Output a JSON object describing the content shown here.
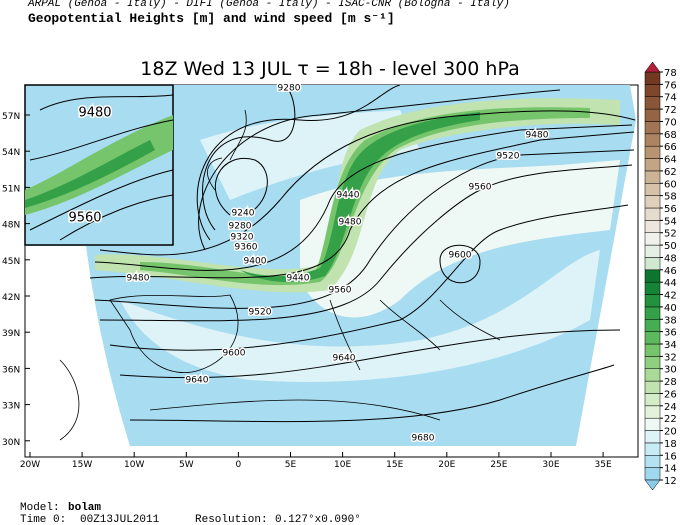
{
  "header": {
    "institutions": "ARPAL (Genoa - Italy)  -  DIFI (Genoa - Italy)  -  ISAC-CNR (Bologna - Italy)",
    "title": "Geopotential Heights [m] and wind speed [m s⁻¹]",
    "subtitle": "18Z Wed 13 JUL  τ = 18h  -  level 300 hPa"
  },
  "map": {
    "lat_labels": [
      "57N",
      "54N",
      "51N",
      "48N",
      "45N",
      "42N",
      "39N",
      "36N",
      "33N",
      "30N"
    ],
    "lon_labels": [
      "20W",
      "15W",
      "10W",
      "5W",
      "0",
      "5E",
      "10E",
      "15E",
      "20E",
      "25E",
      "30E",
      "35E"
    ],
    "contour_labels": [
      "9280",
      "9480",
      "9520",
      "9560",
      "9440",
      "9480",
      "9240",
      "9280",
      "9320",
      "9360",
      "9400",
      "9440",
      "9480",
      "9560",
      "9520",
      "9600",
      "9600",
      "9640",
      "9640",
      "9680"
    ],
    "inset_labels": [
      "9480",
      "9560"
    ]
  },
  "colorbar": {
    "levels": [
      12,
      14,
      16,
      18,
      20,
      22,
      24,
      26,
      28,
      30,
      32,
      34,
      36,
      38,
      40,
      42,
      44,
      46,
      48,
      50,
      52,
      54,
      56,
      58,
      60,
      62,
      64,
      66,
      68,
      70,
      72,
      74,
      76,
      78
    ],
    "colors": [
      "#a0d8ef",
      "#b4e2f3",
      "#c8ecf6",
      "#ddf3f8",
      "#eef8f4",
      "#e4f2dc",
      "#d4ebc8",
      "#c0e3b0",
      "#a9da98",
      "#8fcf80",
      "#76c46c",
      "#5db95e",
      "#46ad52",
      "#34a048",
      "#23923e",
      "#158436",
      "#0d752e",
      "#cfe8cf",
      "#e6efe6",
      "#f0f0ec",
      "#ece6dc",
      "#e6dccd",
      "#dfd0bc",
      "#d6c2a9",
      "#cdb396",
      "#c3a484",
      "#b89472",
      "#ad8462",
      "#a17453",
      "#956445",
      "#8a5638",
      "#7e472c",
      "#723922"
    ],
    "under_color": "#8ccbe8",
    "over_color": "#b0203a"
  },
  "footer": {
    "model_label": "Model:",
    "model": "bolam",
    "time_label": "Time 0:",
    "time": "00Z13JUL2011",
    "resolution_label": "Resolution:",
    "resolution": "0.127°x0.090°"
  }
}
